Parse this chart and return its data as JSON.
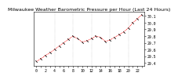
{
  "title": "Milwaukee Weather Barometric Pressure per Hour (Last 24 Hours)",
  "hours": [
    0,
    1,
    2,
    3,
    4,
    5,
    6,
    7,
    8,
    9,
    10,
    11,
    12,
    13,
    14,
    15,
    16,
    17,
    18,
    19,
    20,
    21,
    22,
    23
  ],
  "pressure": [
    29.42,
    29.46,
    29.51,
    29.55,
    29.6,
    29.65,
    29.7,
    29.75,
    29.8,
    29.76,
    29.71,
    29.73,
    29.76,
    29.8,
    29.78,
    29.72,
    29.74,
    29.78,
    29.82,
    29.86,
    29.92,
    30.0,
    30.06,
    30.12
  ],
  "yticks": [
    29.4,
    29.5,
    29.6,
    29.7,
    29.8,
    29.9,
    30.0,
    30.1
  ],
  "ytick_labels": [
    "29.4",
    "29.5",
    "29.6",
    "29.7",
    "29.8",
    "29.9",
    "30.0",
    "30.1"
  ],
  "ylim": [
    29.36,
    30.16
  ],
  "xlim": [
    -0.5,
    23.5
  ],
  "line_color": "#ff0000",
  "marker_color": "#000000",
  "bg_color": "#ffffff",
  "grid_color": "#999999",
  "title_fontsize": 4.5,
  "tick_fontsize": 3.5,
  "vlines": [
    4,
    8,
    12,
    16,
    20
  ]
}
